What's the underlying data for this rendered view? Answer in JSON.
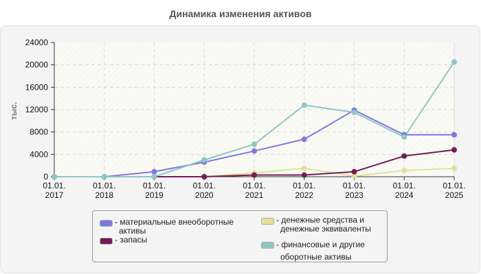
{
  "title": "Динамика изменения активов",
  "chart_data": {
    "type": "line",
    "title": "Динамика изменения активов",
    "xlabel": "",
    "ylabel": "тыс.",
    "ylim": [
      0,
      24000
    ],
    "yticks": [
      "0",
      "4000",
      "8000",
      "12000",
      "16000",
      "20000",
      "24000"
    ],
    "categories": [
      "01.01.2017",
      "01.01.2018",
      "01.01.2019",
      "01.01.2020",
      "01.01.2021",
      "01.01.2022",
      "01.01.2023",
      "01.01.2024",
      "01.01.2025"
    ],
    "xtick_lines": [
      [
        "01.01.",
        "2017"
      ],
      [
        "01.01.",
        "2018"
      ],
      [
        "01.01.",
        "2019"
      ],
      [
        "01.01.",
        "2020"
      ],
      [
        "01.01.",
        "2021"
      ],
      [
        "01.01.",
        "2022"
      ],
      [
        "01.01.",
        "2023"
      ],
      [
        "01.01.",
        "2024"
      ],
      [
        "01.01.",
        "2025"
      ]
    ],
    "grid": true,
    "legend_position": "bottom",
    "series": [
      {
        "name": "материальные внеоборотные активы",
        "color": "#7b78e6",
        "values": [
          0,
          0,
          900,
          2600,
          4600,
          6700,
          11900,
          7500,
          7500
        ]
      },
      {
        "name": "запасы",
        "color": "#741c52",
        "values": [
          0,
          0,
          0,
          0,
          300,
          300,
          900,
          3700,
          4800
        ]
      },
      {
        "name": "денежные средства и денежные эквиваленты",
        "color": "#e3e196",
        "values": [
          0,
          0,
          0,
          0,
          700,
          1500,
          100,
          1100,
          1500
        ]
      },
      {
        "name": "финансовые и другие оборотные активы",
        "color": "#8cc7c6",
        "values": [
          0,
          0,
          0,
          3000,
          5800,
          12800,
          11500,
          7100,
          20500
        ]
      }
    ]
  },
  "legend": {
    "items": [
      {
        "line1": "- материальные внеоборотные",
        "line2": "активы",
        "color": "#7b78e6"
      },
      {
        "line1": "- запасы",
        "line2": "",
        "color": "#741c52"
      },
      {
        "line1": "- денежные средства и",
        "line2": "денежные эквиваленты",
        "color": "#e3e196"
      },
      {
        "line1": "- финансовые и другие",
        "line2": "оборотные активы",
        "color": "#8cc7c6"
      }
    ]
  }
}
